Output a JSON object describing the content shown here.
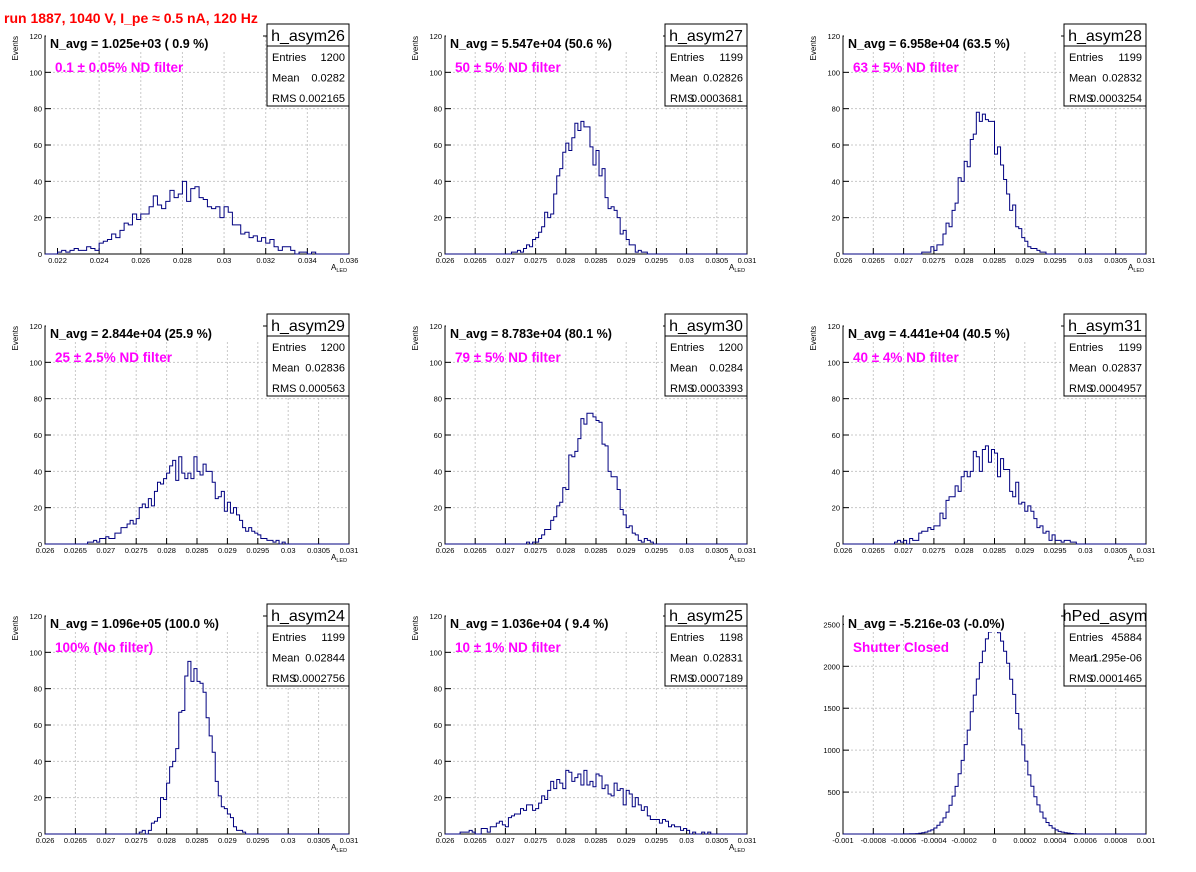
{
  "title": "run 1887,  1040 V, I_pe ≈ 0.5 nA, 120 Hz",
  "colors": {
    "title": "#ff0000",
    "note": "#ff00ff",
    "hist": "#000080",
    "grid": "#c8c8c8"
  },
  "chart_data": [
    {
      "type": "histogram",
      "name": "h_asym26",
      "header": "N_avg = 1.025e+03 ( 0.9 %)",
      "note": "0.1 ± 0.05% ND filter",
      "stats": {
        "entries": "1200",
        "mean": "0.0282",
        "rms": "0.002165"
      },
      "stats_labels": [
        "Entries",
        "Mean",
        "RMS"
      ],
      "xlabel": "A",
      "xlabel_sub": "LED",
      "ylabel": "Events",
      "xlim": [
        0.0214,
        0.036
      ],
      "ylim": [
        0,
        120
      ],
      "xticks": [
        0.022,
        0.024,
        0.026,
        0.028,
        0.03,
        0.032,
        0.034,
        0.036
      ],
      "xtick_labels": [
        "0.022",
        "0.024",
        "0.026",
        "0.028",
        "0.03",
        "0.032",
        "0.034",
        "0.036"
      ],
      "yticks": [
        0,
        20,
        40,
        60,
        80,
        100,
        120
      ],
      "ytick_labels": [
        "0",
        "20",
        "40",
        "60",
        "80",
        "100",
        "120"
      ],
      "mode": "gauss",
      "gauss": {
        "mean": 0.0282,
        "sigma": 0.002165,
        "peak": 34,
        "step": 0.0002
      }
    },
    {
      "type": "histogram",
      "name": "h_asym27",
      "header": "N_avg = 5.547e+04 (50.6 %)",
      "note": "50 ± 5% ND filter",
      "stats": {
        "entries": "1199",
        "mean": "0.02826",
        "rms": "0.0003681"
      },
      "stats_labels": [
        "Entries",
        "Mean",
        "RMS"
      ],
      "xlabel": "A",
      "xlabel_sub": "LED",
      "ylabel": "Events",
      "xlim": [
        0.026,
        0.031
      ],
      "ylim": [
        0,
        120
      ],
      "xticks": [
        0.026,
        0.0265,
        0.027,
        0.0275,
        0.028,
        0.0285,
        0.029,
        0.0295,
        0.03,
        0.0305,
        0.031
      ],
      "xtick_labels": [
        "0.026",
        "0.0265",
        "0.027",
        "0.0275",
        "0.028",
        "0.0285",
        "0.029",
        "0.0295",
        "0.03",
        "0.0305",
        "0.031"
      ],
      "yticks": [
        0,
        20,
        40,
        60,
        80,
        100,
        120
      ],
      "ytick_labels": [
        "0",
        "20",
        "40",
        "60",
        "80",
        "100",
        "120"
      ],
      "mode": "gauss",
      "gauss": {
        "mean": 0.02826,
        "sigma": 0.000368,
        "peak": 66,
        "step": 5e-05
      }
    },
    {
      "type": "histogram",
      "name": "h_asym28",
      "header": "N_avg = 6.958e+04 (63.5 %)",
      "note": "63 ± 5% ND filter",
      "stats": {
        "entries": "1199",
        "mean": "0.02832",
        "rms": "0.0003254"
      },
      "stats_labels": [
        "Entries",
        "Mean",
        "RMS"
      ],
      "xlabel": "A",
      "xlabel_sub": "LED",
      "ylabel": "Events",
      "xlim": [
        0.026,
        0.031
      ],
      "ylim": [
        0,
        120
      ],
      "xticks": [
        0.026,
        0.0265,
        0.027,
        0.0275,
        0.028,
        0.0285,
        0.029,
        0.0295,
        0.03,
        0.0305,
        0.031
      ],
      "xtick_labels": [
        "0.026",
        "0.0265",
        "0.027",
        "0.0275",
        "0.028",
        "0.0285",
        "0.029",
        "0.0295",
        "0.03",
        "0.0305",
        "0.031"
      ],
      "yticks": [
        0,
        20,
        40,
        60,
        80,
        100,
        120
      ],
      "ytick_labels": [
        "0",
        "20",
        "40",
        "60",
        "80",
        "100",
        "120"
      ],
      "mode": "gauss",
      "gauss": {
        "mean": 0.02832,
        "sigma": 0.000325,
        "peak": 74,
        "step": 5e-05
      }
    },
    {
      "type": "histogram",
      "name": "h_asym29",
      "header": "N_avg = 2.844e+04 (25.9 %)",
      "note": "25 ± 2.5% ND filter",
      "stats": {
        "entries": "1200",
        "mean": "0.02836",
        "rms": "0.000563"
      },
      "stats_labels": [
        "Entries",
        "Mean",
        "RMS"
      ],
      "xlabel": "A",
      "xlabel_sub": "LED",
      "ylabel": "Events",
      "xlim": [
        0.026,
        0.031
      ],
      "ylim": [
        0,
        120
      ],
      "xticks": [
        0.026,
        0.0265,
        0.027,
        0.0275,
        0.028,
        0.0285,
        0.029,
        0.0295,
        0.03,
        0.0305,
        0.031
      ],
      "xtick_labels": [
        "0.026",
        "0.0265",
        "0.027",
        "0.0275",
        "0.028",
        "0.0285",
        "0.029",
        "0.0295",
        "0.03",
        "0.0305",
        "0.031"
      ],
      "yticks": [
        0,
        20,
        40,
        60,
        80,
        100,
        120
      ],
      "ytick_labels": [
        "0",
        "20",
        "40",
        "60",
        "80",
        "100",
        "120"
      ],
      "mode": "gauss",
      "gauss": {
        "mean": 0.02836,
        "sigma": 0.000563,
        "peak": 43,
        "step": 5e-05
      }
    },
    {
      "type": "histogram",
      "name": "h_asym30",
      "header": "N_avg = 8.783e+04 (80.1 %)",
      "note": "79 ± 5% ND filter",
      "stats": {
        "entries": "1200",
        "mean": "0.0284",
        "rms": "0.0003393"
      },
      "stats_labels": [
        "Entries",
        "Mean",
        "RMS"
      ],
      "xlabel": "A",
      "xlabel_sub": "LED",
      "ylabel": "Events",
      "xlim": [
        0.026,
        0.031
      ],
      "ylim": [
        0,
        120
      ],
      "xticks": [
        0.026,
        0.0265,
        0.027,
        0.0275,
        0.028,
        0.0285,
        0.029,
        0.0295,
        0.03,
        0.0305,
        0.031
      ],
      "xtick_labels": [
        "0.026",
        "0.0265",
        "0.027",
        "0.0275",
        "0.028",
        "0.0285",
        "0.029",
        "0.0295",
        "0.03",
        "0.0305",
        "0.031"
      ],
      "yticks": [
        0,
        20,
        40,
        60,
        80,
        100,
        120
      ],
      "ytick_labels": [
        "0",
        "20",
        "40",
        "60",
        "80",
        "100",
        "120"
      ],
      "mode": "gauss",
      "gauss": {
        "mean": 0.0284,
        "sigma": 0.000339,
        "peak": 68,
        "step": 5e-05
      }
    },
    {
      "type": "histogram",
      "name": "h_asym31",
      "header": "N_avg = 4.441e+04 (40.5 %)",
      "note": "40 ± 4% ND filter",
      "stats": {
        "entries": "1199",
        "mean": "0.02837",
        "rms": "0.0004957"
      },
      "stats_labels": [
        "Entries",
        "Mean",
        "RMS"
      ],
      "xlabel": "A",
      "xlabel_sub": "LED",
      "ylabel": "Events",
      "xlim": [
        0.026,
        0.031
      ],
      "ylim": [
        0,
        120
      ],
      "xticks": [
        0.026,
        0.0265,
        0.027,
        0.0275,
        0.028,
        0.0285,
        0.029,
        0.0295,
        0.03,
        0.0305,
        0.031
      ],
      "xtick_labels": [
        "0.026",
        "0.0265",
        "0.027",
        "0.0275",
        "0.028",
        "0.0285",
        "0.029",
        "0.0295",
        "0.03",
        "0.0305",
        "0.031"
      ],
      "yticks": [
        0,
        20,
        40,
        60,
        80,
        100,
        120
      ],
      "ytick_labels": [
        "0",
        "20",
        "40",
        "60",
        "80",
        "100",
        "120"
      ],
      "mode": "gauss",
      "gauss": {
        "mean": 0.02837,
        "sigma": 0.000496,
        "peak": 47,
        "step": 5e-05
      }
    },
    {
      "type": "histogram",
      "name": "h_asym24",
      "header": "N_avg = 1.096e+05 (100.0 %)",
      "note": "100% (No filter)",
      "stats": {
        "entries": "1199",
        "mean": "0.02844",
        "rms": "0.0002756"
      },
      "stats_labels": [
        "Entries",
        "Mean",
        "RMS"
      ],
      "xlabel": "A",
      "xlabel_sub": "LED",
      "ylabel": "Events",
      "xlim": [
        0.026,
        0.031
      ],
      "ylim": [
        0,
        120
      ],
      "xticks": [
        0.026,
        0.0265,
        0.027,
        0.0275,
        0.028,
        0.0285,
        0.029,
        0.0295,
        0.03,
        0.0305,
        0.031
      ],
      "xtick_labels": [
        "0.026",
        "0.0265",
        "0.027",
        "0.0275",
        "0.028",
        "0.0285",
        "0.029",
        "0.0295",
        "0.03",
        "0.0305",
        "0.031"
      ],
      "yticks": [
        0,
        20,
        40,
        60,
        80,
        100,
        120
      ],
      "ytick_labels": [
        "0",
        "20",
        "40",
        "60",
        "80",
        "100",
        "120"
      ],
      "mode": "gauss",
      "gauss": {
        "mean": 0.02844,
        "sigma": 0.000276,
        "peak": 87,
        "step": 5e-05
      }
    },
    {
      "type": "histogram",
      "name": "h_asym25",
      "header": "N_avg = 1.036e+04 ( 9.4 %)",
      "note": "10 ± 1% ND filter",
      "stats": {
        "entries": "1198",
        "mean": "0.02831",
        "rms": "0.0007189"
      },
      "stats_labels": [
        "Entries",
        "Mean",
        "RMS"
      ],
      "xlabel": "A",
      "xlabel_sub": "LED",
      "ylabel": "Events",
      "xlim": [
        0.026,
        0.031
      ],
      "ylim": [
        0,
        120
      ],
      "xticks": [
        0.026,
        0.0265,
        0.027,
        0.0275,
        0.028,
        0.0285,
        0.029,
        0.0295,
        0.03,
        0.0305,
        0.031
      ],
      "xtick_labels": [
        "0.026",
        "0.0265",
        "0.027",
        "0.0275",
        "0.028",
        "0.0285",
        "0.029",
        "0.0295",
        "0.03",
        "0.0305",
        "0.031"
      ],
      "yticks": [
        0,
        20,
        40,
        60,
        80,
        100,
        120
      ],
      "ytick_labels": [
        "0",
        "20",
        "40",
        "60",
        "80",
        "100",
        "120"
      ],
      "mode": "gauss",
      "gauss": {
        "mean": 0.02831,
        "sigma": 0.000719,
        "peak": 32,
        "step": 5e-05
      }
    },
    {
      "type": "histogram",
      "name": "hPed_asym",
      "header": "N_avg = -5.216e-03 (-0.0%)",
      "note": "Shutter Closed",
      "stats": {
        "entries": "45884",
        "mean": "1.295e-06",
        "rms": "0.0001465"
      },
      "stats_labels": [
        "Entries",
        "Mean",
        "RMS"
      ],
      "xlabel": "",
      "xlabel_sub": "",
      "ylabel": "",
      "xlim": [
        -0.001,
        0.001
      ],
      "ylim": [
        0,
        2600
      ],
      "xticks": [
        -0.001,
        -0.0008,
        -0.0006,
        -0.0004,
        -0.0002,
        0,
        0.0002,
        0.0004,
        0.0006,
        0.0008,
        0.001
      ],
      "xtick_labels": [
        "-0.001",
        "-0.0008",
        "-0.0006",
        "-0.0004",
        "-0.0002",
        "0",
        "0.0002",
        "0.0004",
        "0.0006",
        "0.0008",
        "0.001"
      ],
      "yticks": [
        0,
        500,
        1000,
        1500,
        2000,
        2500
      ],
      "ytick_labels": [
        "0",
        "500",
        "1000",
        "1500",
        "2000",
        "2500"
      ],
      "mode": "gauss",
      "gauss": {
        "mean": 0.0,
        "sigma": 0.0001465,
        "peak": 2450,
        "step": 2e-05
      }
    }
  ]
}
